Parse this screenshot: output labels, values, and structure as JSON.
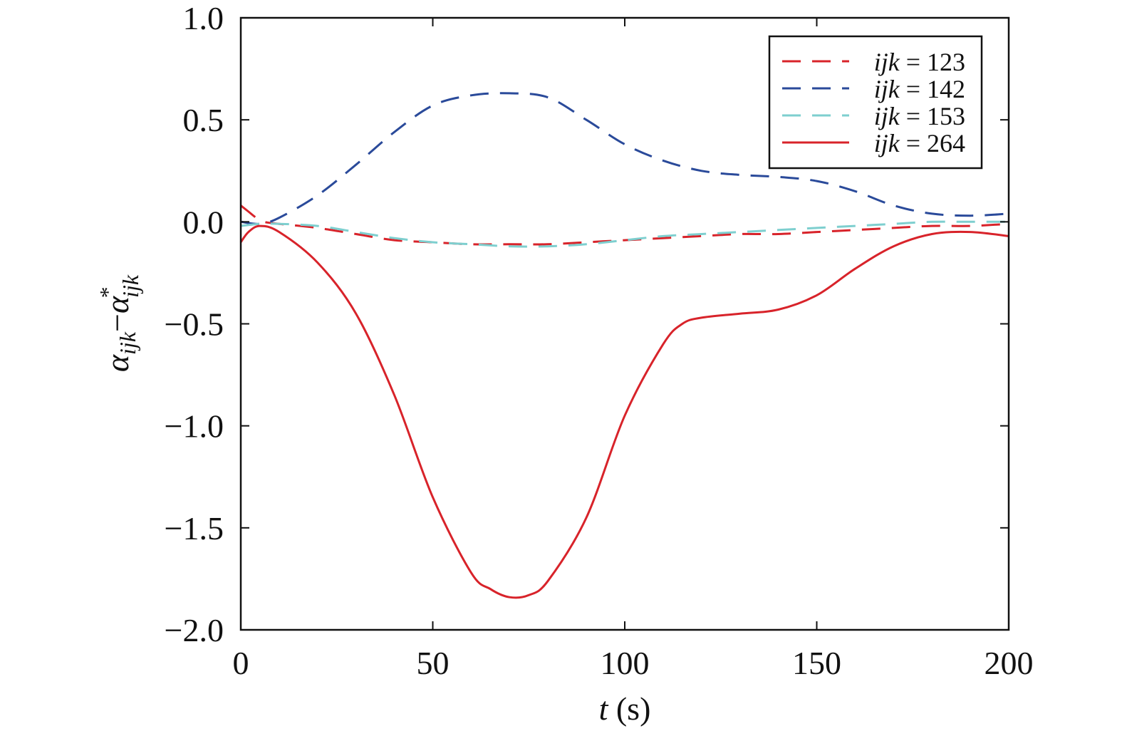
{
  "chart_data": {
    "type": "line",
    "xlabel": {
      "var": "t",
      "unit": " (s)"
    },
    "ylabel": {
      "main": "α",
      "sub": "ijk",
      "minus": "−",
      "sup": "*"
    },
    "xlim": [
      0,
      200
    ],
    "ylim": [
      -2.0,
      1.0
    ],
    "xticks": [
      0,
      50,
      100,
      150,
      200
    ],
    "xtick_labels": [
      "0",
      "50",
      "100",
      "150",
      "200"
    ],
    "yticks": [
      1.0,
      0.5,
      0.0,
      -0.5,
      -1.0,
      -1.5,
      -2.0
    ],
    "ytick_labels": [
      "1.0",
      "0.5",
      "0.0",
      "−0.5",
      "−1.0",
      "−1.5",
      "−2.0"
    ],
    "grid": false,
    "legend_position": "top-right",
    "series": [
      {
        "name": "ijk = 123",
        "label_var": "ijk",
        "label_value": " = 123",
        "style": "dashed",
        "color": "#d8232a",
        "x": [
          0,
          2,
          4,
          6,
          10,
          20,
          30,
          40,
          50,
          60,
          70,
          80,
          90,
          100,
          110,
          120,
          130,
          140,
          150,
          160,
          170,
          180,
          190,
          200
        ],
        "y": [
          0.08,
          0.05,
          0.02,
          0.0,
          -0.01,
          -0.03,
          -0.06,
          -0.09,
          -0.1,
          -0.11,
          -0.11,
          -0.11,
          -0.1,
          -0.09,
          -0.08,
          -0.07,
          -0.06,
          -0.06,
          -0.05,
          -0.04,
          -0.03,
          -0.02,
          -0.02,
          -0.01
        ]
      },
      {
        "name": "ijk = 142",
        "label_var": "ijk",
        "label_value": " = 142",
        "style": "dashed",
        "color": "#2a4a9a",
        "x": [
          0,
          5,
          10,
          20,
          30,
          40,
          50,
          60,
          70,
          80,
          90,
          100,
          110,
          120,
          130,
          140,
          150,
          160,
          170,
          180,
          190,
          200
        ],
        "y": [
          0.0,
          -0.01,
          0.02,
          0.13,
          0.28,
          0.44,
          0.57,
          0.62,
          0.63,
          0.61,
          0.5,
          0.38,
          0.3,
          0.25,
          0.23,
          0.22,
          0.2,
          0.15,
          0.08,
          0.04,
          0.03,
          0.04
        ]
      },
      {
        "name": "ijk = 153",
        "label_var": "ijk",
        "label_value": " = 153",
        "style": "dashed",
        "color": "#7ecfcf",
        "x": [
          0,
          5,
          10,
          20,
          30,
          40,
          50,
          60,
          70,
          80,
          90,
          100,
          110,
          120,
          130,
          140,
          150,
          160,
          170,
          180,
          190,
          200
        ],
        "y": [
          -0.02,
          -0.01,
          -0.01,
          -0.02,
          -0.05,
          -0.08,
          -0.1,
          -0.11,
          -0.12,
          -0.12,
          -0.11,
          -0.09,
          -0.07,
          -0.06,
          -0.05,
          -0.04,
          -0.03,
          -0.02,
          -0.01,
          0.0,
          0.0,
          0.0
        ]
      },
      {
        "name": "ijk = 264",
        "label_var": "ijk",
        "label_value": " = 264",
        "style": "solid",
        "color": "#d8232a",
        "x": [
          0,
          2,
          5,
          10,
          20,
          30,
          40,
          50,
          60,
          65,
          70,
          75,
          80,
          90,
          100,
          110,
          115,
          120,
          130,
          140,
          150,
          160,
          170,
          180,
          190,
          200
        ],
        "y": [
          -0.1,
          -0.05,
          -0.02,
          -0.05,
          -0.2,
          -0.45,
          -0.85,
          -1.35,
          -1.72,
          -1.8,
          -1.84,
          -1.83,
          -1.76,
          -1.45,
          -0.95,
          -0.6,
          -0.5,
          -0.47,
          -0.45,
          -0.43,
          -0.36,
          -0.23,
          -0.12,
          -0.06,
          -0.05,
          -0.07
        ]
      }
    ]
  }
}
